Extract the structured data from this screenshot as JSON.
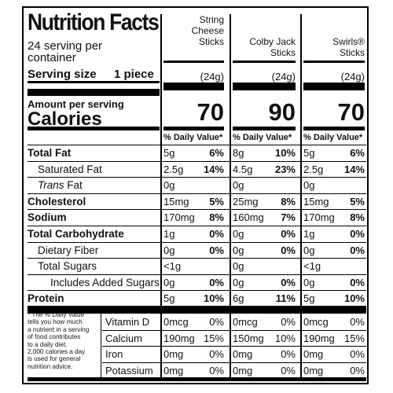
{
  "label": {
    "title": "Nutrition Facts",
    "servings_per_container": "24 serving per\ncontainer",
    "serving_size_label": "Serving size",
    "serving_size_value": "1 piece",
    "amount_per_serving": "Amount per serving",
    "calories_label": "Calories",
    "dv_header": "% Daily Value*",
    "footnote": "* The % Daily Value\ntells you how much\na nutrient in a serving\nof food contributes\nto a daily diet.\n2,000 calories a day\nis used for general\nnutrition advice."
  },
  "products": [
    {
      "name": "String\nCheese\nSticks",
      "serving_weight": "(24g)",
      "calories": "70"
    },
    {
      "name": "Colby Jack\nSticks",
      "serving_weight": "(24g)",
      "calories": "90"
    },
    {
      "name": "Swirls®\nSticks",
      "serving_weight": "(24g)",
      "calories": "70"
    }
  ],
  "nutrients": [
    {
      "label": "Total Fat",
      "style": "bold",
      "values": [
        {
          "amount": "5g",
          "dv": "6%"
        },
        {
          "amount": "8g",
          "dv": "10%"
        },
        {
          "amount": "5g",
          "dv": "6%"
        }
      ]
    },
    {
      "label": "Saturated Fat",
      "style": "indent",
      "values": [
        {
          "amount": "2.5g",
          "dv": "14%"
        },
        {
          "amount": "4.5g",
          "dv": "23%"
        },
        {
          "amount": "2.5g",
          "dv": "14%"
        }
      ]
    },
    {
      "label_italic": "Trans",
      "label": " Fat",
      "style": "indent",
      "values": [
        {
          "amount": "0g",
          "dv": ""
        },
        {
          "amount": "0g",
          "dv": ""
        },
        {
          "amount": "0g",
          "dv": ""
        }
      ]
    },
    {
      "label": "Cholesterol",
      "style": "bold",
      "values": [
        {
          "amount": "15mg",
          "dv": "5%"
        },
        {
          "amount": "25mg",
          "dv": "8%"
        },
        {
          "amount": "15mg",
          "dv": "5%"
        }
      ]
    },
    {
      "label": "Sodium",
      "style": "bold",
      "values": [
        {
          "amount": "170mg",
          "dv": "8%"
        },
        {
          "amount": "160mg",
          "dv": "7%"
        },
        {
          "amount": "170mg",
          "dv": "8%"
        }
      ]
    },
    {
      "label": "Total Carbohydrate",
      "style": "bold",
      "values": [
        {
          "amount": "1g",
          "dv": "0%"
        },
        {
          "amount": "0g",
          "dv": "0%"
        },
        {
          "amount": "1g",
          "dv": "0%"
        }
      ]
    },
    {
      "label": "Dietary Fiber",
      "style": "indent",
      "values": [
        {
          "amount": "0g",
          "dv": "0%"
        },
        {
          "amount": "0g",
          "dv": "0%"
        },
        {
          "amount": "0g",
          "dv": "0%"
        }
      ]
    },
    {
      "label": "Total Sugars",
      "style": "indent",
      "values": [
        {
          "amount": "<1g",
          "dv": ""
        },
        {
          "amount": "0g",
          "dv": ""
        },
        {
          "amount": "<1g",
          "dv": ""
        }
      ]
    },
    {
      "label": "Includes Added Sugars",
      "style": "indent2",
      "values": [
        {
          "amount": "0g",
          "dv": "0%"
        },
        {
          "amount": "0g",
          "dv": "0%"
        },
        {
          "amount": "0g",
          "dv": "0%"
        }
      ]
    },
    {
      "label": "Protein",
      "style": "bold",
      "values": [
        {
          "amount": "5g",
          "dv": "10%"
        },
        {
          "amount": "6g",
          "dv": "11%"
        },
        {
          "amount": "5g",
          "dv": "10%"
        }
      ]
    }
  ],
  "vitamins": [
    {
      "label": "Vitamin D",
      "values": [
        {
          "amount": "0mcg",
          "dv": "0%"
        },
        {
          "amount": "0mcg",
          "dv": "0%"
        },
        {
          "amount": "0mcg",
          "dv": "0%"
        }
      ]
    },
    {
      "label": "Calcium",
      "values": [
        {
          "amount": "190mg",
          "dv": "15%"
        },
        {
          "amount": "150mg",
          "dv": "10%"
        },
        {
          "amount": "190mg",
          "dv": "15%"
        }
      ]
    },
    {
      "label": "Iron",
      "values": [
        {
          "amount": "0mg",
          "dv": "0%"
        },
        {
          "amount": "0mg",
          "dv": "0%"
        },
        {
          "amount": "0mg",
          "dv": "0%"
        }
      ]
    },
    {
      "label": "Potassium",
      "values": [
        {
          "amount": "0mg",
          "dv": "0%"
        },
        {
          "amount": "0mg",
          "dv": "0%"
        },
        {
          "amount": "0mg",
          "dv": "0%"
        }
      ]
    }
  ]
}
